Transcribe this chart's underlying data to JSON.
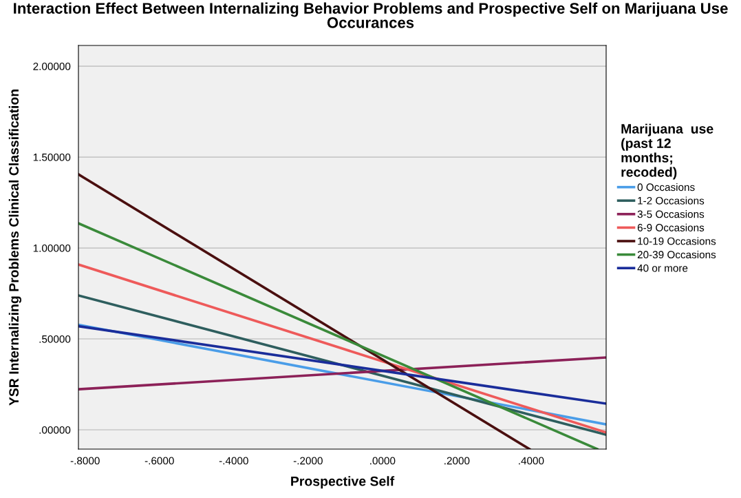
{
  "chart_data": {
    "type": "line",
    "title": "Interaction Effect Between Internalizing Behavior Problems and Prospective Self on Marijuana Use Occurances",
    "xlabel": "Prospective Self",
    "ylabel": "YSR Internalizing Problems Clinical Classification",
    "legend_title": "Marijuana  use\n(past 12\nmonths;\nrecoded)",
    "x": [
      -0.818,
      0.602
    ],
    "series": [
      {
        "name": "0 Occasions",
        "color": "#4a9de8",
        "values": [
          0.578,
          0.03
        ]
      },
      {
        "name": "1-2 Occasions",
        "color": "#2e5e5e",
        "values": [
          0.739,
          -0.027
        ]
      },
      {
        "name": "3-5 Occasions",
        "color": "#8c2158",
        "values": [
          0.223,
          0.398
        ]
      },
      {
        "name": "6-9 Occasions",
        "color": "#ee5a5a",
        "values": [
          0.909,
          -0.015
        ]
      },
      {
        "name": "10-19 Occasions",
        "color": "#4a0f0f",
        "x": [
          -0.818,
          0.396
        ],
        "values": [
          1.405,
          -0.106
        ]
      },
      {
        "name": "20-39 Occasions",
        "color": "#3a8a3a",
        "x": [
          -0.818,
          0.578
        ],
        "values": [
          1.136,
          -0.106
        ]
      },
      {
        "name": "40 or more",
        "color": "#1a2d9a",
        "values": [
          0.57,
          0.144
        ]
      }
    ],
    "xlim": [
      -0.818,
      0.602
    ],
    "ylim": [
      -0.106,
      2.114
    ],
    "xticks": [
      {
        "value": -0.8,
        "label": "-.8000"
      },
      {
        "value": -0.6,
        "label": "-.6000"
      },
      {
        "value": -0.4,
        "label": "-.4000"
      },
      {
        "value": -0.2,
        "label": "-.2000"
      },
      {
        "value": 0,
        "label": ".0000"
      },
      {
        "value": 0.2,
        "label": ".2000"
      },
      {
        "value": 0.4,
        "label": ".4000"
      }
    ],
    "yticks": [
      {
        "value": 0,
        "label": ".00000"
      },
      {
        "value": 0.5,
        "label": ".50000"
      },
      {
        "value": 1,
        "label": "1.00000"
      },
      {
        "value": 1.5,
        "label": "1.50000"
      },
      {
        "value": 2,
        "label": "2.00000"
      }
    ],
    "grid": "y",
    "legend": "right",
    "marker": "none",
    "line_style": "solid"
  }
}
